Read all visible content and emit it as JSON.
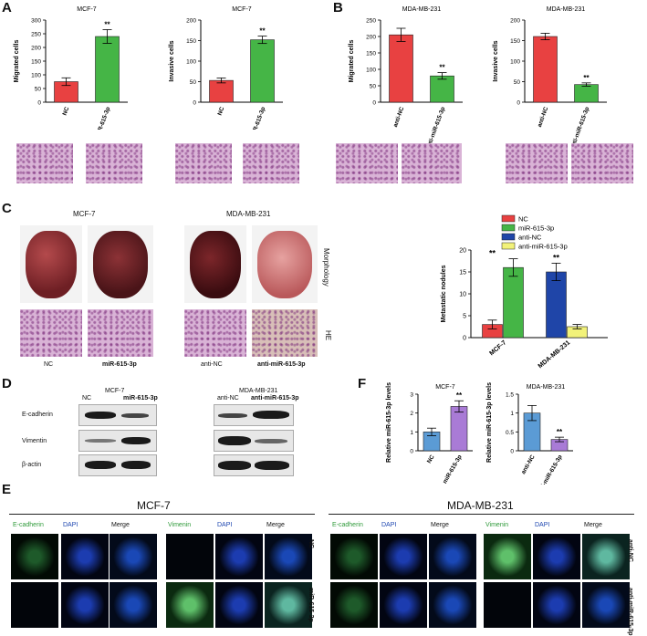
{
  "panels": {
    "a": "A",
    "b": "B",
    "c": "C",
    "d": "D",
    "e": "E",
    "f": "F"
  },
  "chart_data": [
    {
      "id": "A1",
      "type": "bar",
      "title": "MCF-7",
      "ylabel": "Migrated cells",
      "categories": [
        "NC",
        "miR-615-3p"
      ],
      "values": [
        75,
        240
      ],
      "errors": [
        14,
        25
      ],
      "colors": [
        "#e84141",
        "#45b546"
      ],
      "ylim": [
        0,
        300
      ],
      "yticks": [
        0,
        50,
        100,
        150,
        200,
        250,
        300
      ],
      "significance": [
        "",
        "**"
      ]
    },
    {
      "id": "A2",
      "type": "bar",
      "title": "MCF-7",
      "ylabel": "Invasive cells",
      "categories": [
        "NC",
        "miR-615-3p"
      ],
      "values": [
        53,
        152
      ],
      "errors": [
        6,
        9
      ],
      "colors": [
        "#e84141",
        "#45b546"
      ],
      "ylim": [
        0,
        200
      ],
      "yticks": [
        0,
        50,
        100,
        150,
        200
      ],
      "significance": [
        "",
        "**"
      ]
    },
    {
      "id": "B1",
      "type": "bar",
      "title": "MDA-MB-231",
      "ylabel": "Migrated cells",
      "categories": [
        "anti-NC",
        "anti-miR-615-3p"
      ],
      "values": [
        205,
        80
      ],
      "errors": [
        20,
        10
      ],
      "colors": [
        "#e84141",
        "#45b546"
      ],
      "ylim": [
        0,
        250
      ],
      "yticks": [
        0,
        50,
        100,
        150,
        200,
        250
      ],
      "significance": [
        "",
        "**"
      ]
    },
    {
      "id": "B2",
      "type": "bar",
      "title": "MDA-MB-231",
      "ylabel": "Invasive cells",
      "categories": [
        "anti-NC",
        "anti-miR-615-3p"
      ],
      "values": [
        160,
        43
      ],
      "errors": [
        8,
        4
      ],
      "colors": [
        "#e84141",
        "#45b546"
      ],
      "ylim": [
        0,
        200
      ],
      "yticks": [
        0,
        50,
        100,
        150,
        200
      ],
      "significance": [
        "",
        "**"
      ]
    },
    {
      "id": "C",
      "type": "bar",
      "title": "",
      "ylabel": "Metastatic nodules",
      "categories": [
        "MCF-7",
        "MDA-MB-231"
      ],
      "series": [
        {
          "name": "NC",
          "values": [
            3,
            null
          ],
          "errors": [
            1,
            null
          ],
          "color": "#e84141"
        },
        {
          "name": "miR-615-3p",
          "values": [
            16,
            null
          ],
          "errors": [
            2,
            null
          ],
          "color": "#45b546"
        },
        {
          "name": "anti-NC",
          "values": [
            null,
            15
          ],
          "errors": [
            null,
            2
          ],
          "color": "#1f45a8"
        },
        {
          "name": "anti-miR-615-3p",
          "values": [
            null,
            2.5
          ],
          "errors": [
            null,
            0.5
          ],
          "color": "#f2f27a"
        }
      ],
      "ylim": [
        0,
        20
      ],
      "yticks": [
        0,
        5,
        10,
        15,
        20
      ],
      "significance": [
        "**",
        "**"
      ]
    },
    {
      "id": "F1",
      "type": "bar",
      "title": "MCF-7",
      "ylabel": "Relative miR-615-3p levels",
      "categories": [
        "NC",
        "miR-615-3p"
      ],
      "values": [
        1.0,
        2.35
      ],
      "errors": [
        0.2,
        0.3
      ],
      "colors": [
        "#5b9bd5",
        "#a97bd6"
      ],
      "ylim": [
        0,
        3
      ],
      "yticks": [
        0,
        1,
        2,
        3
      ],
      "significance": [
        "",
        "**"
      ]
    },
    {
      "id": "F2",
      "type": "bar",
      "title": "MDA-MB-231",
      "ylabel": "Relative miR-615-3p levels",
      "categories": [
        "anti-NC",
        "anti-miR-615-3p"
      ],
      "values": [
        1.0,
        0.3
      ],
      "errors": [
        0.2,
        0.06
      ],
      "colors": [
        "#5b9bd5",
        "#a97bd6"
      ],
      "ylim": [
        0,
        1.5
      ],
      "yticks": [
        0,
        0.5,
        1.0,
        1.5
      ],
      "significance": [
        "",
        "**"
      ]
    }
  ],
  "panel_c": {
    "mcf7_title": "MCF-7",
    "mda_title": "MDA-MB-231",
    "side_morphology": "Morphology",
    "side_he": "HE",
    "labels": [
      "NC",
      "miR-615-3p",
      "anti-NC",
      "anti-miR-615-3p"
    ]
  },
  "panel_d": {
    "mcf7_title": "MCF-7",
    "mda_title": "MDA-MB-231",
    "mcf7_lanes": [
      "NC",
      "miR-615-3p"
    ],
    "mda_lanes": [
      "anti-NC",
      "anti-miR-615-3p"
    ],
    "rows": [
      "E-cadherin",
      "Vimentin",
      "β-actin"
    ]
  },
  "panel_e": {
    "mcf7_title": "MCF-7",
    "mda_title": "MDA-MB-231",
    "mcf7_cols": [
      "E-cadherin",
      "DAPI",
      "Merge",
      "Vimenin",
      "DAPI",
      "Merge"
    ],
    "mda_cols": [
      "E-cadherin",
      "DAPI",
      "Merge",
      "Vimenin",
      "DAPI",
      "Merge"
    ],
    "mcf7_rows": [
      "NC",
      "miR-615-3p"
    ],
    "mda_rows": [
      "anti-NC",
      "anti-miR-615-3p"
    ]
  },
  "colors": {
    "red": "#e84141",
    "green": "#45b546",
    "blue": "#1f45a8",
    "yellow": "#f2f27a"
  }
}
